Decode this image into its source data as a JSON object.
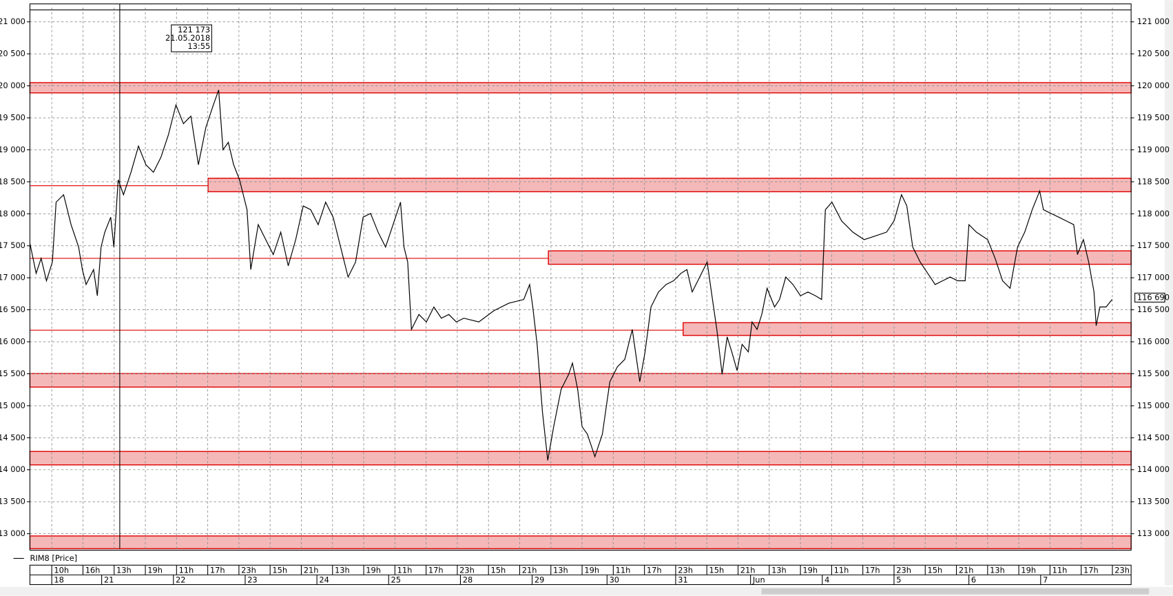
{
  "chart_data": {
    "type": "line",
    "series": [
      {
        "name": "RIM8 [Price]",
        "color": "#000000",
        "axis": "y2",
        "x": [
          -0.7,
          -0.5,
          -0.34,
          -0.17,
          0.02,
          0.14,
          0.38,
          0.62,
          0.86,
          0.98,
          1.1,
          1.34,
          1.46,
          1.58,
          1.7,
          1.89,
          1.99,
          2.13,
          2.3,
          2.54,
          2.78,
          3.02,
          3.26,
          3.5,
          3.74,
          3.98,
          4.22,
          4.46,
          4.7,
          4.94,
          5.18,
          5.35,
          5.49,
          5.66,
          5.83,
          6.02,
          6.26,
          6.38,
          6.62,
          6.86,
          7.1,
          7.34,
          7.58,
          7.82,
          8.06,
          8.3,
          8.54,
          8.78,
          9.02,
          9.26,
          9.5,
          9.74,
          9.98,
          10.22,
          10.46,
          10.7,
          10.94,
          11.18,
          11.29,
          11.41,
          11.53,
          11.77,
          12.01,
          12.25,
          12.49,
          12.73,
          12.97,
          13.21,
          13.69,
          14.17,
          14.65,
          15.13,
          15.32,
          15.42,
          15.56,
          15.73,
          15.9,
          16.09,
          16.33,
          16.57,
          16.69,
          16.86,
          17.0,
          17.17,
          17.41,
          17.65,
          17.89,
          18.13,
          18.37,
          18.61,
          18.85,
          19.02,
          19.21,
          19.45,
          19.69,
          19.93,
          20.17,
          20.36,
          20.53,
          20.77,
          21.01,
          21.18,
          21.32,
          21.49,
          21.65,
          21.8,
          21.97,
          22.13,
          22.33,
          22.45,
          22.61,
          22.76,
          22.93,
          23.17,
          23.33,
          23.53,
          23.76,
          24.0,
          24.24,
          24.48,
          24.68,
          24.8,
          25.01,
          25.32,
          25.68,
          26.04,
          26.4,
          26.76,
          27.0,
          27.24,
          27.41,
          27.6,
          27.84,
          28.08,
          28.32,
          28.56,
          28.8,
          29.04,
          29.28,
          29.4,
          29.64,
          30.0,
          30.24,
          30.48,
          30.72,
          30.96,
          31.19,
          31.43,
          31.67,
          31.79,
          32.03,
          32.28,
          32.52,
          32.76,
          32.88,
          33.07,
          33.24,
          33.41,
          33.48,
          33.6,
          33.8,
          33.99
        ],
        "values": [
          117538,
          117070,
          117304,
          116953,
          117246,
          118181,
          118298,
          117830,
          117480,
          117129,
          116895,
          117129,
          116719,
          117480,
          117713,
          117947,
          117480,
          118532,
          118298,
          118649,
          119058,
          118766,
          118649,
          118883,
          119234,
          119702,
          119409,
          119526,
          118766,
          119351,
          119702,
          119936,
          119000,
          119117,
          118766,
          118532,
          118064,
          117129,
          117830,
          117596,
          117363,
          117713,
          117187,
          117596,
          118123,
          118064,
          117830,
          118181,
          117947,
          117480,
          117012,
          117246,
          117947,
          118006,
          117713,
          117480,
          117830,
          118181,
          117480,
          117246,
          116193,
          116427,
          116310,
          116544,
          116368,
          116427,
          116310,
          116368,
          116310,
          116485,
          116602,
          116661,
          116895,
          116544,
          115959,
          114906,
          114146,
          114672,
          115257,
          115491,
          115667,
          115257,
          114672,
          114555,
          114205,
          114555,
          115374,
          115608,
          115725,
          116193,
          115374,
          115842,
          116544,
          116778,
          116895,
          116953,
          117070,
          117129,
          116778,
          117012,
          117246,
          116661,
          116193,
          115491,
          116076,
          115842,
          115550,
          115959,
          115842,
          116310,
          116193,
          116427,
          116836,
          116544,
          116661,
          117012,
          116895,
          116719,
          116778,
          116719,
          116661,
          118064,
          118181,
          117889,
          117713,
          117596,
          117654,
          117713,
          117889,
          118298,
          118123,
          117480,
          117246,
          117070,
          116895,
          116953,
          117012,
          116953,
          116953,
          117830,
          117713,
          117596,
          117304,
          116953,
          116836,
          117480,
          117713,
          118064,
          118356,
          118064,
          118006,
          117947,
          117889,
          117830,
          117363,
          117596,
          117246,
          116778,
          116251,
          116544,
          116544,
          116661
        ]
      }
    ],
    "xlim": [
      -0.7,
      34.6
    ],
    "ylim": [
      12766,
      21222
    ],
    "y2lim": [
      112766,
      121222
    ],
    "yticks": [
      {
        "value": 13000,
        "label": "13 000"
      },
      {
        "value": 13500,
        "label": "13 500"
      },
      {
        "value": 14000,
        "label": "14 000"
      },
      {
        "value": 14500,
        "label": "14 500"
      },
      {
        "value": 15000,
        "label": "15 000"
      },
      {
        "value": 15500,
        "label": "15 500"
      },
      {
        "value": 16000,
        "label": "16 000"
      },
      {
        "value": 16500,
        "label": "16 500"
      },
      {
        "value": 17000,
        "label": "17 000"
      },
      {
        "value": 17500,
        "label": "17 500"
      },
      {
        "value": 18000,
        "label": "18 000"
      },
      {
        "value": 18500,
        "label": "18 500"
      },
      {
        "value": 19000,
        "label": "19 000"
      },
      {
        "value": 19500,
        "label": "19 500"
      },
      {
        "value": 20000,
        "label": "20 000"
      },
      {
        "value": 20500,
        "label": "20 500"
      },
      {
        "value": 21000,
        "label": "21 000"
      }
    ],
    "y2ticks": [
      {
        "value": 113000,
        "label": "113 000"
      },
      {
        "value": 113500,
        "label": "113 500"
      },
      {
        "value": 114000,
        "label": "114 000"
      },
      {
        "value": 114500,
        "label": "114 500"
      },
      {
        "value": 115000,
        "label": "115 000"
      },
      {
        "value": 115500,
        "label": "115 500"
      },
      {
        "value": 116000,
        "label": "116 000"
      },
      {
        "value": 116500,
        "label": "116 500"
      },
      {
        "value": 117000,
        "label": "117 000"
      },
      {
        "value": 117500,
        "label": "117 500"
      },
      {
        "value": 118000,
        "label": "118 000"
      },
      {
        "value": 118500,
        "label": "118 500"
      },
      {
        "value": 119000,
        "label": "119 000"
      },
      {
        "value": 119500,
        "label": "119 500"
      },
      {
        "value": 120000,
        "label": "120 000"
      },
      {
        "value": 120500,
        "label": "120 500"
      },
      {
        "value": 121000,
        "label": "121 000"
      }
    ],
    "xticks": [
      {
        "value": 0,
        "label": "10h"
      },
      {
        "value": 1,
        "label": "16h"
      },
      {
        "value": 2,
        "label": "13h"
      },
      {
        "value": 3,
        "label": "19h"
      },
      {
        "value": 4,
        "label": "11h"
      },
      {
        "value": 5,
        "label": "17h"
      },
      {
        "value": 6,
        "label": "23h"
      },
      {
        "value": 7,
        "label": "15h"
      },
      {
        "value": 8,
        "label": "21h"
      },
      {
        "value": 9,
        "label": "13h"
      },
      {
        "value": 10,
        "label": "19h"
      },
      {
        "value": 11,
        "label": "11h"
      },
      {
        "value": 12,
        "label": "17h"
      },
      {
        "value": 13,
        "label": "23h"
      },
      {
        "value": 14,
        "label": "15h"
      },
      {
        "value": 15,
        "label": "21h"
      },
      {
        "value": 16,
        "label": "13h"
      },
      {
        "value": 17,
        "label": "19h"
      },
      {
        "value": 18,
        "label": "11h"
      },
      {
        "value": 19,
        "label": "17h"
      },
      {
        "value": 20,
        "label": "23h"
      },
      {
        "value": 21,
        "label": "15h"
      },
      {
        "value": 22,
        "label": "21h"
      },
      {
        "value": 23,
        "label": "13h"
      },
      {
        "value": 24,
        "label": "19h"
      },
      {
        "value": 25,
        "label": "11h"
      },
      {
        "value": 26,
        "label": "17h"
      },
      {
        "value": 27,
        "label": "23h"
      },
      {
        "value": 28,
        "label": "15h"
      },
      {
        "value": 29,
        "label": "21h"
      },
      {
        "value": 30,
        "label": "13h"
      },
      {
        "value": 31,
        "label": "19h"
      },
      {
        "value": 32,
        "label": "11h"
      },
      {
        "value": 33,
        "label": "17h"
      },
      {
        "value": 34,
        "label": "23h"
      }
    ],
    "dates": [
      {
        "value": 0,
        "label": "18"
      },
      {
        "value": 1.6,
        "label": "21"
      },
      {
        "value": 3.9,
        "label": "22"
      },
      {
        "value": 6.2,
        "label": "23"
      },
      {
        "value": 8.5,
        "label": "24"
      },
      {
        "value": 10.8,
        "label": "25"
      },
      {
        "value": 13.1,
        "label": "28"
      },
      {
        "value": 15.4,
        "label": "29"
      },
      {
        "value": 17.8,
        "label": "30"
      },
      {
        "value": 20.0,
        "label": "31"
      },
      {
        "value": 22.4,
        "label": "Jun"
      },
      {
        "value": 24.7,
        "label": "4"
      },
      {
        "value": 27.0,
        "label": "5"
      },
      {
        "value": 29.4,
        "label": "6"
      },
      {
        "value": 31.7,
        "label": "7"
      }
    ],
    "zones": [
      {
        "low": 119890,
        "high": 120050,
        "start": -0.7,
        "color": "#f4b8b8"
      },
      {
        "low": 118345,
        "high": 118556,
        "start": 5.01,
        "line": 118439,
        "color": "#f4b8b8"
      },
      {
        "low": 117211,
        "high": 117421,
        "start": 15.92,
        "line": 117304,
        "color": "#f4b8b8"
      },
      {
        "low": 116099,
        "high": 116298,
        "start": 20.24,
        "line": 116181,
        "color": "#f4b8b8"
      },
      {
        "low": 115292,
        "high": 115503,
        "start": -0.7,
        "color": "#f4b8b8"
      },
      {
        "low": 114076,
        "high": 114286,
        "start": -0.7,
        "color": "#f4b8b8"
      },
      {
        "low": 112766,
        "high": 112965,
        "start": -0.7,
        "color": "#f4b8b8"
      }
    ],
    "crosshair": {
      "x": 2.18,
      "value": "121 173",
      "date": "21.05.2018",
      "time": "13:55"
    },
    "last_price": {
      "value": 116690,
      "label": "116 690"
    },
    "grid": true
  }
}
